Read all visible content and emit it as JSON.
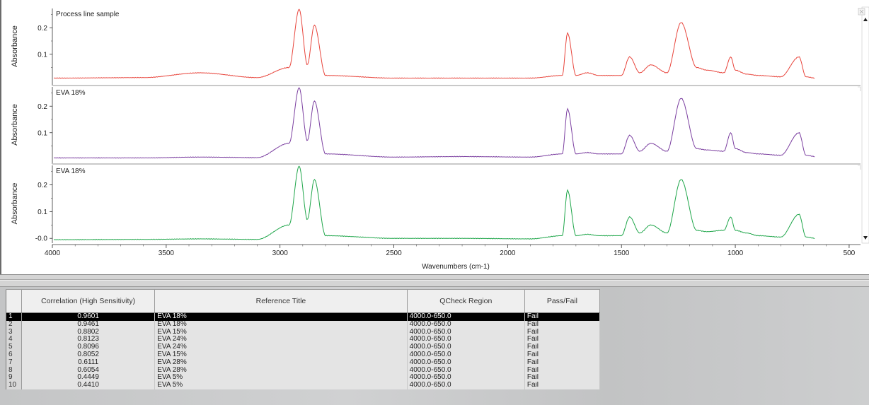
{
  "plot": {
    "y_label": "Absorbance",
    "x_label": "Wavenumbers (cm-1)",
    "x_ticks": [
      "4000",
      "3500",
      "3000",
      "2500",
      "2000",
      "1500",
      "1000",
      "500"
    ],
    "panels": [
      {
        "title": "Process line sample",
        "color": "#e8453c",
        "y_ticks": [
          "0.2",
          "0.1"
        ]
      },
      {
        "title": "EVA 18%",
        "color": "#7b3fa0",
        "y_ticks": [
          "0.2",
          "0.1"
        ]
      },
      {
        "title": "EVA 18%",
        "color": "#1fa64a",
        "y_ticks": [
          "0.2",
          "0.1",
          "-0.0"
        ]
      }
    ]
  },
  "chart_data": [
    {
      "type": "line",
      "title": "Process line sample",
      "ylabel": "Absorbance",
      "xlabel": "Wavenumbers (cm-1)",
      "xlim": [
        4000,
        450
      ],
      "ylim": [
        -0.01,
        0.27
      ],
      "color": "#e8453c",
      "series": [
        {
          "x": [
            4000,
            3600,
            3350,
            3100,
            2960,
            2916,
            2880,
            2849,
            2800,
            2500,
            2200,
            1900,
            1760,
            1737,
            1700,
            1650,
            1600,
            1500,
            1464,
            1420,
            1371,
            1300,
            1238,
            1170,
            1125,
            1050,
            1020,
            1000,
            950,
            900,
            800,
            720,
            690,
            650
          ],
          "y": [
            0.01,
            0.012,
            0.03,
            0.012,
            0.05,
            0.27,
            0.06,
            0.21,
            0.02,
            0.01,
            0.01,
            0.01,
            0.02,
            0.18,
            0.02,
            0.03,
            0.02,
            0.02,
            0.09,
            0.03,
            0.06,
            0.03,
            0.22,
            0.05,
            0.04,
            0.03,
            0.09,
            0.04,
            0.025,
            0.02,
            0.015,
            0.09,
            0.015,
            0.01
          ]
        }
      ]
    },
    {
      "type": "line",
      "title": "EVA 18%",
      "ylabel": "Absorbance",
      "xlabel": "Wavenumbers (cm-1)",
      "xlim": [
        4000,
        450
      ],
      "ylim": [
        -0.01,
        0.27
      ],
      "color": "#7b3fa0",
      "series": [
        {
          "x": [
            4000,
            3600,
            3350,
            3100,
            2960,
            2916,
            2880,
            2849,
            2800,
            2500,
            2200,
            1900,
            1760,
            1737,
            1700,
            1650,
            1600,
            1500,
            1464,
            1420,
            1371,
            1300,
            1238,
            1170,
            1125,
            1050,
            1020,
            1000,
            950,
            900,
            800,
            720,
            690,
            650
          ],
          "y": [
            0.005,
            0.005,
            0.008,
            0.006,
            0.06,
            0.27,
            0.07,
            0.22,
            0.02,
            0.008,
            0.01,
            0.008,
            0.02,
            0.19,
            0.02,
            0.025,
            0.02,
            0.02,
            0.09,
            0.03,
            0.06,
            0.03,
            0.23,
            0.04,
            0.035,
            0.03,
            0.1,
            0.04,
            0.025,
            0.02,
            0.015,
            0.1,
            0.015,
            0.01
          ]
        }
      ]
    },
    {
      "type": "line",
      "title": "EVA 18%",
      "ylabel": "Absorbance",
      "xlabel": "Wavenumbers (cm-1)",
      "xlim": [
        4000,
        450
      ],
      "ylim": [
        -0.01,
        0.27
      ],
      "color": "#1fa64a",
      "series": [
        {
          "x": [
            4000,
            3600,
            3350,
            3100,
            2960,
            2916,
            2880,
            2849,
            2800,
            2500,
            2200,
            1900,
            1760,
            1737,
            1700,
            1650,
            1600,
            1500,
            1464,
            1420,
            1371,
            1300,
            1238,
            1170,
            1125,
            1050,
            1020,
            1000,
            950,
            900,
            800,
            720,
            690,
            650
          ],
          "y": [
            -0.005,
            -0.004,
            -0.002,
            -0.004,
            0.05,
            0.27,
            0.07,
            0.22,
            0.01,
            0.0,
            0.0,
            -0.002,
            0.01,
            0.18,
            0.01,
            0.015,
            0.01,
            0.01,
            0.08,
            0.02,
            0.05,
            0.02,
            0.22,
            0.03,
            0.025,
            0.03,
            0.08,
            0.03,
            0.02,
            0.01,
            0.005,
            0.09,
            0.005,
            0.0
          ]
        }
      ]
    }
  ],
  "table": {
    "headers": [
      "Correlation (High Sensitivity)",
      "Reference Title",
      "QCheck Region",
      "Pass/Fail"
    ],
    "rows": [
      [
        "1",
        "0.9601",
        "EVA 18%",
        "4000.0-650.0",
        "Fail"
      ],
      [
        "2",
        "0.9461",
        "EVA 18%",
        "4000.0-650.0",
        "Fail"
      ],
      [
        "3",
        "0.8802",
        "EVA 15%",
        "4000.0-650.0",
        "Fail"
      ],
      [
        "4",
        "0.8123",
        "EVA 24%",
        "4000.0-650.0",
        "Fail"
      ],
      [
        "5",
        "0.8096",
        "EVA 24%",
        "4000.0-650.0",
        "Fail"
      ],
      [
        "6",
        "0.8052",
        "EVA 15%",
        "4000.0-650.0",
        "Fail"
      ],
      [
        "7",
        "0.6111",
        "EVA 28%",
        "4000.0-650.0",
        "Fail"
      ],
      [
        "8",
        "0.6054",
        "EVA 28%",
        "4000.0-650.0",
        "Fail"
      ],
      [
        "9",
        "0.4449",
        "EVA 5%",
        "4000.0-650.0",
        "Fail"
      ],
      [
        "10",
        "0.4410",
        "EVA 5%",
        "4000.0-650.0",
        "Fail"
      ]
    ],
    "selected_row": 0
  }
}
